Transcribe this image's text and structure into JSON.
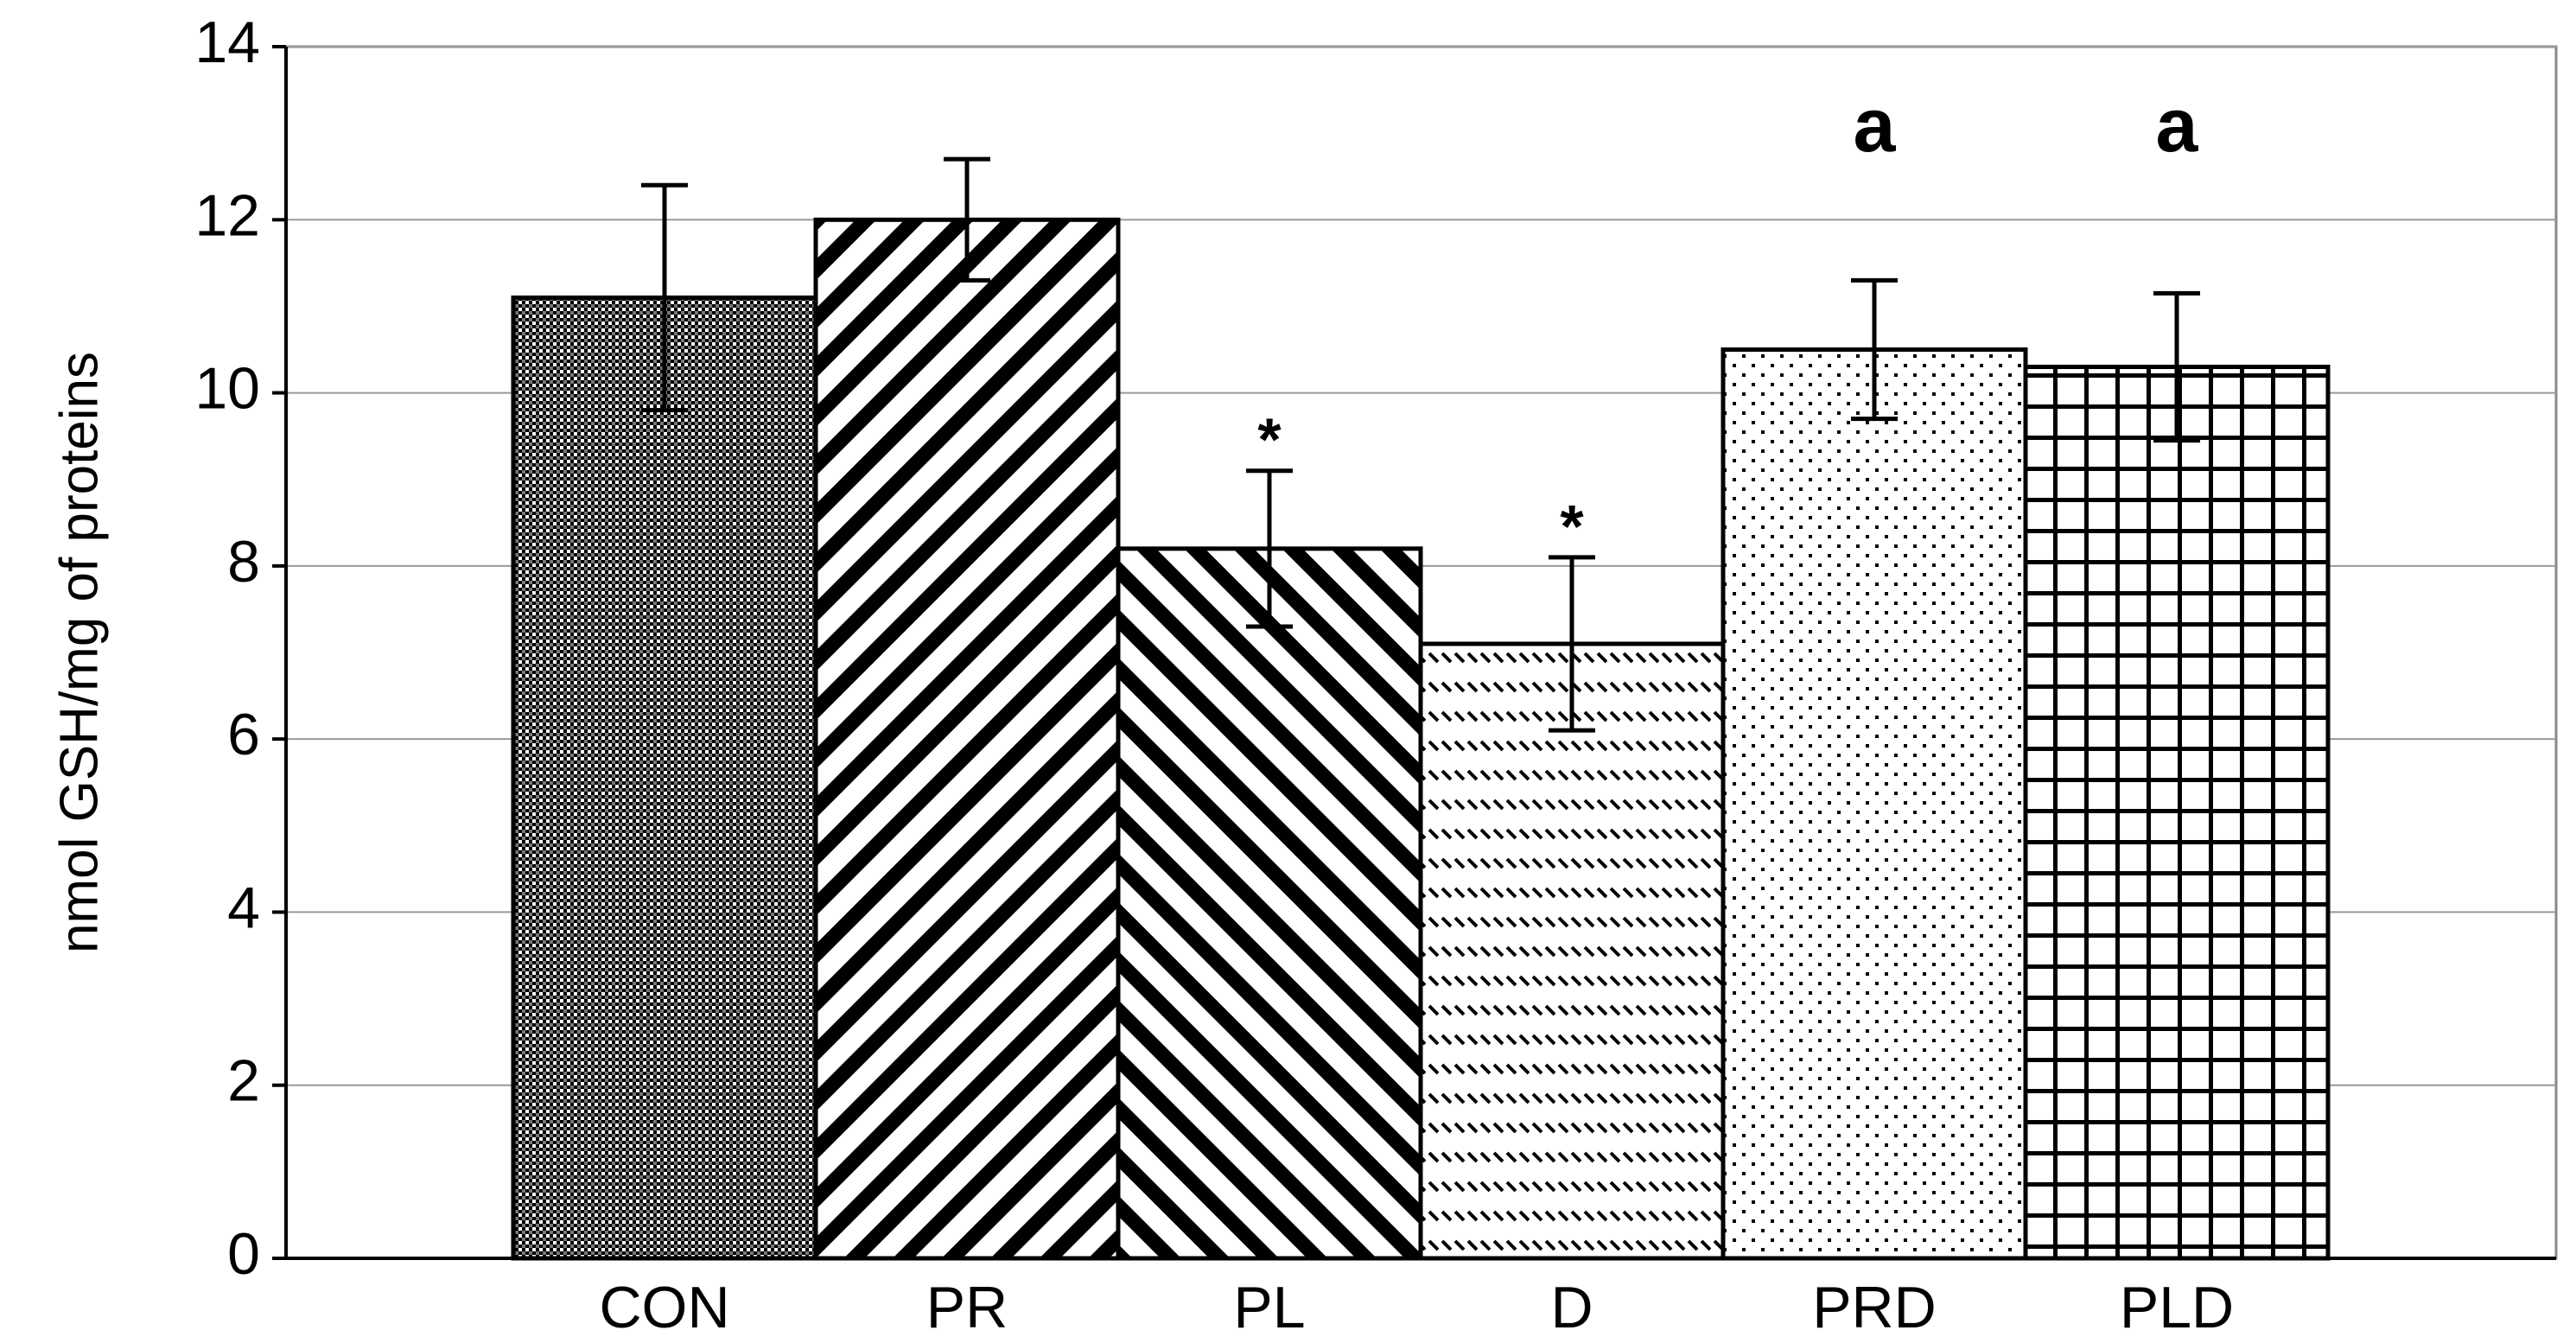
{
  "chart_data": {
    "type": "bar",
    "y_label": "nmol GSH/mg of proteins",
    "categories": [
      "CON",
      "PR",
      "PL",
      "D",
      "PRD",
      "PLD"
    ],
    "values": [
      11.1,
      12.0,
      8.2,
      7.1,
      10.5,
      10.3
    ],
    "errors": [
      1.3,
      0.7,
      0.9,
      1.0,
      0.8,
      0.85
    ],
    "annotations": [
      null,
      null,
      "*",
      "*",
      "a",
      "a"
    ],
    "color": "#000000",
    "ylim": [
      0,
      14
    ],
    "yticks": [
      0,
      2,
      4,
      6,
      8,
      10,
      12,
      14
    ],
    "grid": true
  }
}
